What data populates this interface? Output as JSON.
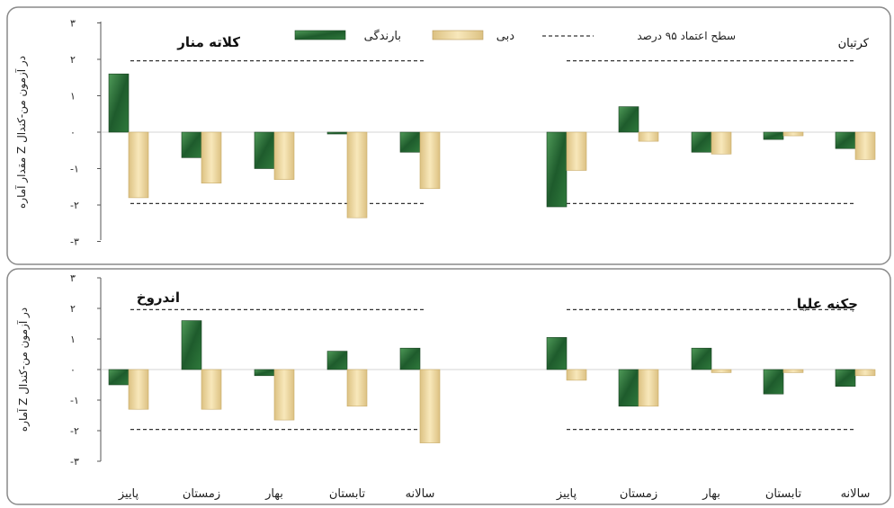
{
  "legend": {
    "rain": "بارندگی",
    "flow": "دبی",
    "confidence": "سطح اعتماد ۹۵ درصد"
  },
  "colors": {
    "rain": "#1e5b2c",
    "rain_light": "#3f8a4a",
    "flow": "#efd9a0",
    "flow_edge": "#c9ac6a",
    "frame": "#7f7f7f",
    "axis": "#555555",
    "dash": "#333333"
  },
  "axis": {
    "ylabel": "آماره Z در آزمون من-کندال",
    "ylabel_top": "مقدار آماره Z در آزمون من-کندال",
    "yticks": [
      "۳",
      "۲",
      "۱",
      "۰",
      "-۱",
      "-۲",
      "-۳"
    ],
    "categories": [
      "پاییز",
      "زمستان",
      "بهار",
      "تابستان",
      "سالانه"
    ]
  },
  "chart_data": [
    {
      "type": "bar",
      "title": "کلاته منار",
      "categories": [
        "پاییز",
        "زمستان",
        "بهار",
        "تابستان",
        "سالانه"
      ],
      "series": [
        {
          "name": "بارندگی",
          "values": [
            1.6,
            -0.7,
            -1.0,
            -0.05,
            -0.55
          ]
        },
        {
          "name": "دبی",
          "values": [
            -1.8,
            -1.4,
            -1.3,
            -2.35,
            -1.55
          ]
        }
      ],
      "ylim": [
        -3,
        3
      ],
      "confidence": [
        1.96,
        -1.96
      ]
    },
    {
      "type": "bar",
      "title": "کرتیان",
      "categories": [
        "پاییز",
        "زمستان",
        "بهار",
        "تابستان",
        "سالانه"
      ],
      "series": [
        {
          "name": "بارندگی",
          "values": [
            -2.05,
            0.7,
            -0.55,
            -0.2,
            -0.45
          ]
        },
        {
          "name": "دبی",
          "values": [
            -1.05,
            -0.25,
            -0.6,
            -0.1,
            -0.75
          ]
        }
      ],
      "ylim": [
        -3,
        3
      ],
      "confidence": [
        1.96,
        -1.96
      ]
    },
    {
      "type": "bar",
      "title": "اندروخ",
      "categories": [
        "پاییز",
        "زمستان",
        "بهار",
        "تابستان",
        "سالانه"
      ],
      "series": [
        {
          "name": "بارندگی",
          "values": [
            -0.5,
            1.6,
            -0.2,
            0.6,
            0.7
          ]
        },
        {
          "name": "دبی",
          "values": [
            -1.3,
            -1.3,
            -1.65,
            -1.2,
            -2.4
          ]
        }
      ],
      "ylim": [
        -3,
        3
      ],
      "confidence": [
        1.96,
        -1.96
      ]
    },
    {
      "type": "bar",
      "title": "چکنه علیا",
      "categories": [
        "پاییز",
        "زمستان",
        "بهار",
        "تابستان",
        "سالانه"
      ],
      "series": [
        {
          "name": "بارندگی",
          "values": [
            1.05,
            -1.2,
            0.7,
            -0.8,
            -0.55
          ]
        },
        {
          "name": "دبی",
          "values": [
            -0.35,
            -1.2,
            -0.1,
            -0.1,
            -0.2
          ]
        }
      ],
      "ylim": [
        -3,
        3
      ],
      "confidence": [
        1.96,
        -1.96
      ]
    }
  ]
}
